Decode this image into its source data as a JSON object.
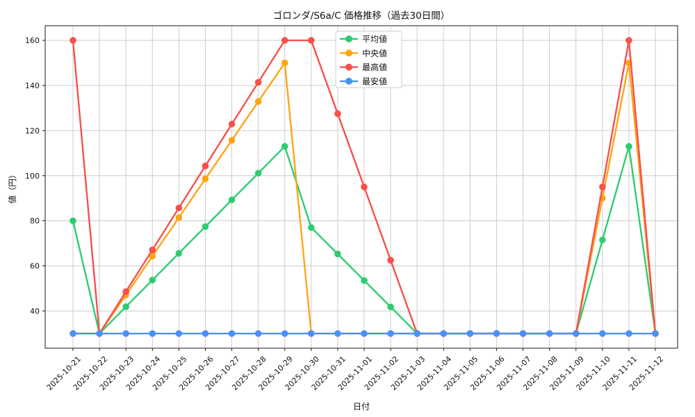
{
  "title": "ゴロンダ/S6a/C 価格推移（過去30日間）",
  "chart_data": {
    "type": "line",
    "title": "ゴロンダ/S6a/C 価格推移（過去30日間）",
    "xlabel": "日付",
    "ylabel": "値（円）",
    "x": [
      "2025-10-21",
      "2025-10-22",
      "2025-10-23",
      "2025-10-24",
      "2025-10-25",
      "2025-10-26",
      "2025-10-27",
      "2025-10-28",
      "2025-10-29",
      "2025-10-30",
      "2025-10-31",
      "2025-11-01",
      "2025-11-02",
      "2025-11-03",
      "2025-11-04",
      "2025-11-05",
      "2025-11-06",
      "2025-11-07",
      "2025-11-08",
      "2025-11-09",
      "2025-11-10",
      "2025-11-11",
      "2025-11-12"
    ],
    "ylim": [
      23.5,
      166.5
    ],
    "yticks": [
      40,
      60,
      80,
      100,
      120,
      140,
      160
    ],
    "grid": true,
    "grid_color": "#cccccc",
    "spine_color": "#1a1a1a",
    "legend": {
      "position": "upper center-left inside",
      "items": [
        "平均値",
        "中央値",
        "最高値",
        "最安値"
      ]
    },
    "series": [
      {
        "key": "average",
        "name": "平均値",
        "color": "#2ecc71",
        "values": [
          80,
          30,
          41.9,
          53.7,
          65.6,
          77.4,
          89.3,
          101.1,
          113,
          77,
          65.3,
          53.5,
          41.8,
          30,
          30,
          30,
          30,
          30,
          30,
          30,
          71.5,
          113,
          30
        ]
      },
      {
        "key": "median",
        "name": "中央値",
        "color": "#ffa414",
        "values": [
          30,
          30,
          47.1,
          64.3,
          81.4,
          98.6,
          115.7,
          132.9,
          150,
          30,
          30,
          30,
          30,
          30,
          30,
          30,
          30,
          30,
          30,
          30,
          90,
          150,
          30
        ]
      },
      {
        "key": "max",
        "name": "最高値",
        "color": "#f7504d",
        "values": [
          160,
          30,
          48.6,
          67.1,
          85.7,
          104.3,
          122.9,
          141.4,
          160,
          160,
          127.5,
          95,
          62.5,
          30,
          30,
          30,
          30,
          30,
          30,
          30,
          95,
          160,
          30
        ]
      },
      {
        "key": "min",
        "name": "最安値",
        "color": "#4b90f7",
        "values": [
          30,
          30,
          30,
          30,
          30,
          30,
          30,
          30,
          30,
          30,
          30,
          30,
          30,
          30,
          30,
          30,
          30,
          30,
          30,
          30,
          30,
          30,
          30
        ]
      }
    ]
  }
}
